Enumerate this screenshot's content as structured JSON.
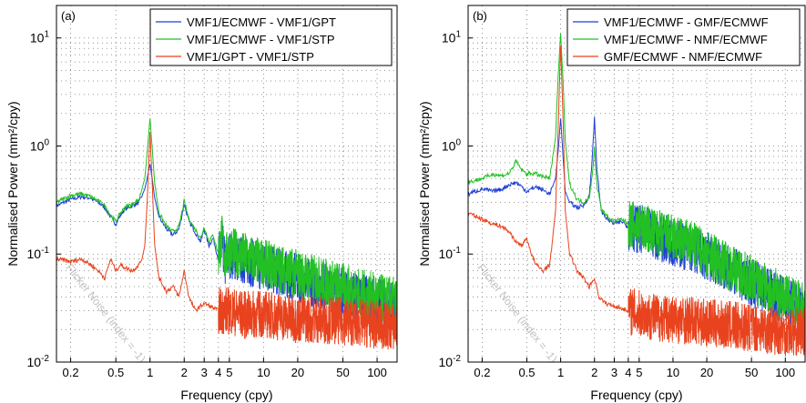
{
  "chart_data": [
    {
      "type": "line",
      "panel_label": "(a)",
      "xlabel": "Frequency (cpy)",
      "ylabel": "Normalised Power (mm²/cpy)",
      "xscale": "log",
      "yscale": "log",
      "xlim": [
        0.15,
        150
      ],
      "ylim": [
        0.01,
        20
      ],
      "xticks": [
        0.2,
        0.5,
        1,
        2,
        3,
        4,
        5,
        10,
        20,
        50,
        100
      ],
      "xticklabels": [
        "0.2",
        "0.5",
        "1",
        "2",
        "3",
        "4",
        "5",
        "10",
        "20",
        "50",
        "100"
      ],
      "yticks": [
        0.01,
        0.1,
        1,
        10
      ],
      "yticklabels": [
        [
          "10",
          "-2"
        ],
        [
          "10",
          "-1"
        ],
        [
          "10",
          "0"
        ],
        [
          "10",
          "1"
        ]
      ],
      "grid": true,
      "legend_position": "top-right",
      "annotation": "Flicker Noise (index = -1)",
      "series": [
        {
          "name": "VMF1/ECMWF - VMF1/GPT",
          "color": "#1f3fd6",
          "x": [
            0.15,
            0.2,
            0.25,
            0.3,
            0.35,
            0.4,
            0.45,
            0.5,
            0.55,
            0.6,
            0.7,
            0.8,
            0.9,
            0.95,
            1,
            1.05,
            1.1,
            1.2,
            1.4,
            1.6,
            1.8,
            2,
            2.2,
            2.5,
            2.8,
            3,
            3.3,
            3.6,
            4,
            4.3,
            4.6,
            5,
            6,
            8,
            10,
            15,
            20,
            30,
            50,
            70,
            100,
            150
          ],
          "y": [
            0.28,
            0.32,
            0.34,
            0.33,
            0.3,
            0.27,
            0.22,
            0.19,
            0.23,
            0.26,
            0.28,
            0.3,
            0.4,
            0.52,
            0.68,
            0.48,
            0.33,
            0.22,
            0.17,
            0.15,
            0.17,
            0.29,
            0.2,
            0.16,
            0.13,
            0.17,
            0.12,
            0.14,
            0.09,
            0.13,
            0.08,
            0.1,
            0.09,
            0.082,
            0.075,
            0.066,
            0.06,
            0.052,
            0.045,
            0.04,
            0.036,
            0.032
          ]
        },
        {
          "name": "VMF1/ECMWF - VMF1/STP",
          "color": "#22c022",
          "x": [
            0.15,
            0.2,
            0.25,
            0.3,
            0.35,
            0.4,
            0.45,
            0.5,
            0.55,
            0.6,
            0.7,
            0.8,
            0.9,
            0.95,
            1,
            1.05,
            1.1,
            1.2,
            1.4,
            1.6,
            1.8,
            2,
            2.2,
            2.5,
            2.8,
            3,
            3.3,
            3.6,
            4,
            4.3,
            4.6,
            5,
            6,
            8,
            10,
            15,
            20,
            30,
            50,
            70,
            100,
            150
          ],
          "y": [
            0.3,
            0.35,
            0.36,
            0.34,
            0.31,
            0.28,
            0.23,
            0.2,
            0.24,
            0.27,
            0.29,
            0.32,
            0.5,
            0.95,
            1.8,
            0.9,
            0.45,
            0.24,
            0.18,
            0.16,
            0.18,
            0.31,
            0.21,
            0.17,
            0.14,
            0.18,
            0.13,
            0.15,
            0.1,
            0.14,
            0.09,
            0.11,
            0.1,
            0.09,
            0.082,
            0.072,
            0.066,
            0.058,
            0.05,
            0.044,
            0.04,
            0.036
          ]
        },
        {
          "name": "VMF1/GPT - VMF1/STP",
          "color": "#e8431e",
          "x": [
            0.15,
            0.2,
            0.25,
            0.3,
            0.35,
            0.4,
            0.45,
            0.5,
            0.55,
            0.6,
            0.7,
            0.8,
            0.85,
            0.9,
            0.95,
            1,
            1.05,
            1.1,
            1.2,
            1.4,
            1.6,
            1.8,
            2,
            2.2,
            2.5,
            3,
            4,
            5,
            7,
            10,
            15,
            20,
            30,
            50,
            70,
            100,
            150
          ],
          "y": [
            0.09,
            0.085,
            0.09,
            0.08,
            0.07,
            0.06,
            0.09,
            0.07,
            0.08,
            0.075,
            0.07,
            0.08,
            0.09,
            0.12,
            0.35,
            1.35,
            0.4,
            0.12,
            0.06,
            0.045,
            0.05,
            0.04,
            0.07,
            0.04,
            0.03,
            0.035,
            0.03,
            0.03,
            0.027,
            0.028,
            0.026,
            0.025,
            0.025,
            0.024,
            0.023,
            0.022,
            0.021
          ]
        }
      ]
    },
    {
      "type": "line",
      "panel_label": "(b)",
      "xlabel": "Frequency (cpy)",
      "ylabel": "Normalised Power (mm²/cpy)",
      "xscale": "log",
      "yscale": "log",
      "xlim": [
        0.15,
        150
      ],
      "ylim": [
        0.01,
        20
      ],
      "xticks": [
        0.2,
        0.5,
        1,
        2,
        3,
        4,
        5,
        10,
        20,
        50,
        100
      ],
      "xticklabels": [
        "0.2",
        "0.5",
        "1",
        "2",
        "3",
        "4",
        "5",
        "10",
        "20",
        "50",
        "100"
      ],
      "yticks": [
        0.01,
        0.1,
        1,
        10
      ],
      "yticklabels": [
        [
          "10",
          "-2"
        ],
        [
          "10",
          "-1"
        ],
        [
          "10",
          "0"
        ],
        [
          "10",
          "1"
        ]
      ],
      "grid": true,
      "legend_position": "top-right",
      "annotation": "Flicker Noise (index = -1)",
      "series": [
        {
          "name": "VMF1/ECMWF - GMF/ECMWF",
          "color": "#1f3fd6",
          "x": [
            0.15,
            0.2,
            0.25,
            0.3,
            0.35,
            0.4,
            0.45,
            0.5,
            0.55,
            0.6,
            0.7,
            0.8,
            0.9,
            0.95,
            1,
            1.05,
            1.1,
            1.2,
            1.4,
            1.6,
            1.8,
            1.9,
            2,
            2.1,
            2.3,
            2.6,
            3,
            3.5,
            4,
            5,
            6,
            8,
            10,
            15,
            20,
            30,
            50,
            70,
            100,
            150
          ],
          "y": [
            0.36,
            0.4,
            0.38,
            0.4,
            0.44,
            0.46,
            0.42,
            0.38,
            0.4,
            0.42,
            0.39,
            0.36,
            0.5,
            0.9,
            1.8,
            0.8,
            0.38,
            0.3,
            0.27,
            0.28,
            0.35,
            0.7,
            1.9,
            0.6,
            0.25,
            0.21,
            0.19,
            0.2,
            0.18,
            0.17,
            0.16,
            0.14,
            0.13,
            0.11,
            0.095,
            0.075,
            0.055,
            0.045,
            0.037,
            0.03
          ]
        },
        {
          "name": "VMF1/ECMWF - NMF/ECMWF",
          "color": "#22c022",
          "x": [
            0.15,
            0.2,
            0.25,
            0.3,
            0.35,
            0.4,
            0.45,
            0.5,
            0.55,
            0.6,
            0.7,
            0.8,
            0.9,
            0.95,
            1,
            1.05,
            1.1,
            1.2,
            1.4,
            1.6,
            1.8,
            1.9,
            2,
            2.1,
            2.3,
            2.6,
            3,
            3.5,
            4,
            5,
            6,
            8,
            10,
            15,
            20,
            30,
            50,
            70,
            100,
            150
          ],
          "y": [
            0.46,
            0.5,
            0.55,
            0.53,
            0.56,
            0.72,
            0.6,
            0.55,
            0.56,
            0.55,
            0.52,
            0.5,
            1.2,
            4.5,
            11.0,
            4.0,
            1.1,
            0.45,
            0.32,
            0.3,
            0.34,
            0.5,
            0.95,
            0.45,
            0.26,
            0.22,
            0.2,
            0.21,
            0.19,
            0.18,
            0.17,
            0.15,
            0.14,
            0.12,
            0.1,
            0.08,
            0.058,
            0.048,
            0.04,
            0.032
          ]
        },
        {
          "name": "GMF/ECMWF - NMF/ECMWF",
          "color": "#e8431e",
          "x": [
            0.15,
            0.2,
            0.25,
            0.3,
            0.35,
            0.4,
            0.45,
            0.5,
            0.55,
            0.6,
            0.7,
            0.8,
            0.9,
            0.95,
            1,
            1.05,
            1.1,
            1.2,
            1.4,
            1.6,
            1.8,
            2,
            2.2,
            2.5,
            3,
            4,
            5,
            7,
            10,
            15,
            20,
            30,
            50,
            70,
            100,
            150
          ],
          "y": [
            0.24,
            0.21,
            0.19,
            0.18,
            0.16,
            0.13,
            0.12,
            0.14,
            0.1,
            0.08,
            0.07,
            0.08,
            0.25,
            1.5,
            8.5,
            1.8,
            0.25,
            0.1,
            0.07,
            0.06,
            0.05,
            0.06,
            0.04,
            0.035,
            0.033,
            0.03,
            0.028,
            0.026,
            0.025,
            0.024,
            0.023,
            0.022,
            0.021,
            0.02,
            0.019,
            0.019
          ]
        }
      ]
    }
  ]
}
